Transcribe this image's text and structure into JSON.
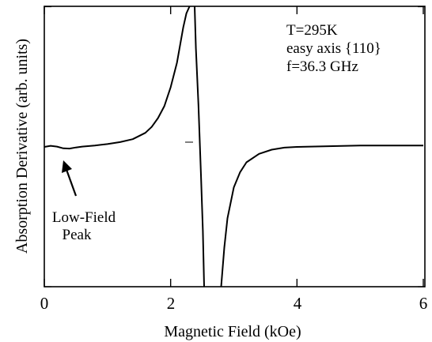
{
  "chart_data": {
    "type": "line",
    "xlabel": "Magnetic Field (kOe)",
    "ylabel": "Absorption Derivative (arb. units)",
    "xlim": [
      0,
      6
    ],
    "ylim": [
      -1,
      1
    ],
    "xticks": [
      0,
      2,
      4,
      6
    ],
    "xtick_labels": [
      "0",
      "2",
      "4",
      "6"
    ],
    "grid": false,
    "annotations": {
      "conditions": [
        "T=295K",
        "easy axis {110}",
        "f=36.3 GHz"
      ],
      "feature_label": [
        "Low-Field",
        "Peak"
      ]
    },
    "series": [
      {
        "branch": "left",
        "x": [
          0.0,
          0.1,
          0.2,
          0.3,
          0.4,
          0.5,
          0.6,
          0.8,
          1.0,
          1.2,
          1.4,
          1.6,
          1.7,
          1.8,
          1.9,
          2.0,
          2.1,
          2.2,
          2.25,
          2.3
        ],
        "y": [
          0.0,
          0.008,
          0.002,
          -0.01,
          -0.012,
          -0.004,
          0.002,
          0.01,
          0.02,
          0.034,
          0.055,
          0.1,
          0.142,
          0.205,
          0.29,
          0.425,
          0.6,
          0.85,
          0.95,
          1.0
        ]
      },
      {
        "branch": "center",
        "x": [
          2.38,
          2.4,
          2.44,
          2.48,
          2.51,
          2.53
        ],
        "y": [
          1.0,
          0.7,
          0.3,
          -0.2,
          -0.6,
          -1.0
        ]
      },
      {
        "branch": "right",
        "x": [
          2.8,
          2.85,
          2.9,
          3.0,
          3.1,
          3.2,
          3.4,
          3.6,
          3.8,
          4.0,
          4.5,
          5.0,
          5.5,
          6.0
        ],
        "y": [
          -1.0,
          -0.72,
          -0.51,
          -0.29,
          -0.18,
          -0.11,
          -0.05,
          -0.02,
          -0.005,
          0.0,
          0.005,
          0.01,
          0.01,
          0.01
        ]
      }
    ]
  }
}
